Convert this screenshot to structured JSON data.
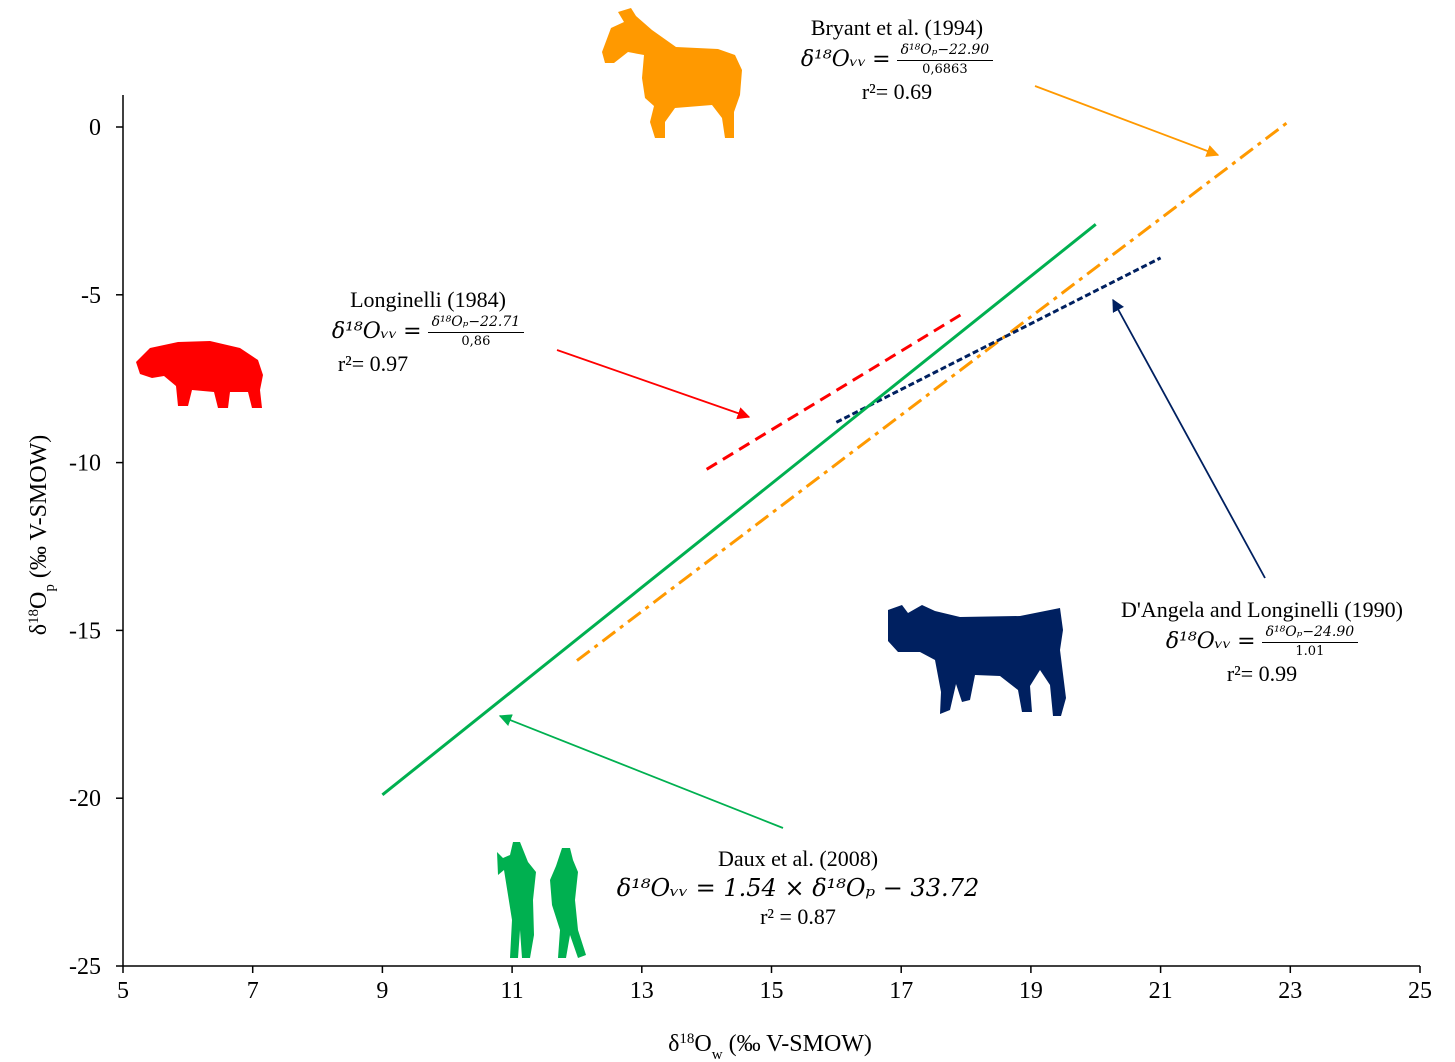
{
  "chart_data": {
    "type": "line",
    "xlabel": "δ¹⁸Oᵥᵥ (‰ V-SMOW)",
    "xlabel_parts": {
      "main": "δ",
      "sup": "18",
      "base": "O",
      "sub": "w",
      "unit": " (‰ V-SMOW)"
    },
    "ylabel_parts": {
      "main": "δ",
      "sup": "18",
      "base": "O",
      "sub": "p",
      "unit": " (‰ V-SMOW)"
    },
    "xlim": [
      5,
      25
    ],
    "ylim": [
      -25,
      0
    ],
    "x_ticks": [
      "5",
      "7",
      "9",
      "11",
      "13",
      "15",
      "17",
      "19",
      "21",
      "23",
      "25"
    ],
    "y_ticks": [
      "0",
      "-5",
      "-10",
      "-15",
      "-20",
      "-25"
    ],
    "grid": false,
    "series": [
      {
        "key": "longinelli",
        "name": "Longinelli (1984)",
        "color": "#ff0000",
        "dash": "dashed",
        "x": [
          14,
          18
        ],
        "y": [
          -10.2,
          -5.5
        ],
        "equation": {
          "lhs": "δ¹⁸Oᵥᵥ",
          "num": "δ¹⁸Oₚ−22.71",
          "den": "0,86"
        },
        "r2": "r²= 0.97",
        "icon": "boar-icon"
      },
      {
        "key": "bryant",
        "name": "Bryant et al. (1994)",
        "color": "#ff9900",
        "dash": "dashdot",
        "x": [
          12,
          23
        ],
        "y": [
          -15.9,
          0.2
        ],
        "equation": {
          "lhs": "δ¹⁸Oᵥᵥ",
          "num": "δ¹⁸Oₚ−22.90",
          "den": "0,6863"
        },
        "r2": "r²= 0.69",
        "icon": "horse-icon"
      },
      {
        "key": "dangela",
        "name": "D'Angela and Longinelli (1990)",
        "color": "#002060",
        "dash": "dotted",
        "x": [
          16,
          21
        ],
        "y": [
          -8.8,
          -3.9
        ],
        "equation": {
          "lhs": "δ¹⁸Oᵥᵥ",
          "num": "δ¹⁸Oₚ−24.90",
          "den": "1.01"
        },
        "r2": "r²= 0.99",
        "icon": "cow-icon"
      },
      {
        "key": "daux",
        "name": "Daux et al. (2008)",
        "color": "#00b050",
        "dash": "solid",
        "x": [
          9,
          20
        ],
        "y": [
          -19.9,
          -2.9
        ],
        "equation": {
          "linear": "δ¹⁸Oᵥᵥ = 1.54 × δ¹⁸Oₚ − 33.72"
        },
        "r2": "r² = 0.87",
        "icon": "humans-icon"
      }
    ]
  }
}
